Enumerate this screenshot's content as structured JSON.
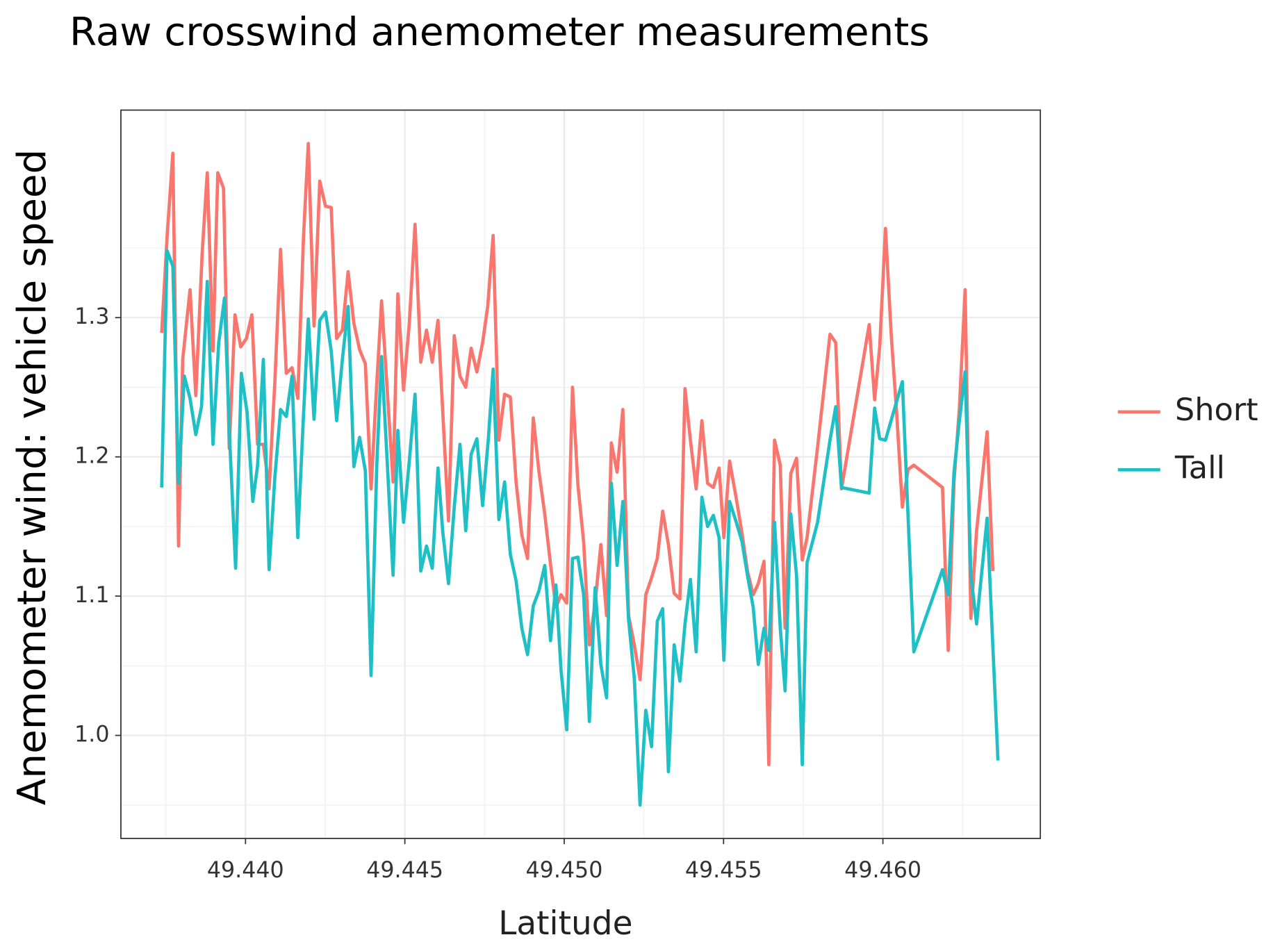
{
  "chart_data": {
    "type": "line",
    "title": "Raw crosswind anemometer measurements",
    "x_label": "Latitude",
    "y_label": "Anemometer wind: vehicle speed",
    "xlim": [
      49.43609,
      49.46494
    ],
    "ylim": [
      0.926,
      1.449
    ],
    "xticks": [
      {
        "value": 49.44,
        "label": "49.440"
      },
      {
        "value": 49.445,
        "label": "49.445"
      },
      {
        "value": 49.45,
        "label": "49.450"
      },
      {
        "value": 49.455,
        "label": "49.455"
      },
      {
        "value": 49.46,
        "label": "49.460"
      }
    ],
    "yticks": [
      {
        "value": 1,
        "label": "1.0"
      },
      1.1,
      1.2,
      1.3
    ],
    "grid": true,
    "legend": "right",
    "series": [
      {
        "name": "Short",
        "color": "#F8766D",
        "x": [
          49.43737,
          49.43754,
          49.43772,
          49.4379,
          49.43803,
          49.43826,
          49.43844,
          49.43864,
          49.4388,
          49.43898,
          49.43913,
          49.43931,
          49.43949,
          49.43967,
          49.43985,
          49.44003,
          49.4402,
          49.44038,
          49.44056,
          49.44074,
          49.44092,
          49.4411,
          49.44128,
          49.44146,
          49.44164,
          49.44182,
          49.44197,
          49.44215,
          49.44233,
          49.44251,
          49.44269,
          49.44286,
          49.44304,
          49.44322,
          49.4434,
          49.44358,
          49.44376,
          49.44394,
          49.44412,
          49.44427,
          49.44445,
          49.44463,
          49.44478,
          49.44496,
          49.44514,
          49.44532,
          49.4455,
          49.44568,
          49.44586,
          49.44604,
          49.44619,
          49.44637,
          49.44655,
          49.44673,
          49.44691,
          49.44708,
          49.44726,
          49.44744,
          49.4476,
          49.44777,
          49.44795,
          49.44813,
          49.44831,
          49.44849,
          49.44867,
          49.44885,
          49.44903,
          49.44921,
          49.44939,
          49.44957,
          49.44974,
          49.4499,
          49.45008,
          49.45026,
          49.45043,
          49.45061,
          49.45079,
          49.45097,
          49.45115,
          49.45133,
          49.45148,
          49.45166,
          49.45184,
          49.45202,
          49.4522,
          49.45238,
          49.45256,
          49.45274,
          49.45292,
          49.45309,
          49.45327,
          49.45345,
          49.45363,
          49.45379,
          49.45396,
          49.45414,
          49.45432,
          49.4545,
          49.45468,
          49.45486,
          49.45501,
          49.45519,
          49.4554,
          49.45558,
          49.45575,
          49.45593,
          49.45609,
          49.45627,
          49.45642,
          49.4566,
          49.45678,
          49.45693,
          49.45711,
          49.45729,
          49.45747,
          49.45762,
          49.45795,
          49.45834,
          49.45852,
          49.4587,
          49.45957,
          49.45974,
          49.4599,
          49.46008,
          49.46026,
          49.46043,
          49.46061,
          49.46079,
          49.46097,
          49.46187,
          49.46205,
          49.46223,
          49.4624,
          49.46258,
          49.46276,
          49.46294,
          49.46327,
          49.46345
        ],
        "values": [
          1.289,
          1.358,
          1.418,
          1.136,
          1.27,
          1.32,
          1.244,
          1.346,
          1.404,
          1.276,
          1.404,
          1.393,
          1.206,
          1.302,
          1.279,
          1.285,
          1.302,
          1.209,
          1.209,
          1.177,
          1.253,
          1.349,
          1.26,
          1.264,
          1.242,
          1.358,
          1.425,
          1.294,
          1.398,
          1.38,
          1.379,
          1.285,
          1.291,
          1.333,
          1.296,
          1.277,
          1.267,
          1.177,
          1.253,
          1.312,
          1.247,
          1.182,
          1.317,
          1.248,
          1.296,
          1.367,
          1.268,
          1.291,
          1.268,
          1.298,
          1.232,
          1.154,
          1.287,
          1.258,
          1.25,
          1.278,
          1.261,
          1.282,
          1.308,
          1.359,
          1.212,
          1.245,
          1.243,
          1.182,
          1.144,
          1.127,
          1.228,
          1.189,
          1.159,
          1.123,
          1.092,
          1.101,
          1.095,
          1.25,
          1.18,
          1.139,
          1.065,
          1.095,
          1.137,
          1.086,
          1.21,
          1.189,
          1.234,
          1.086,
          1.065,
          1.04,
          1.101,
          1.113,
          1.127,
          1.161,
          1.137,
          1.102,
          1.098,
          1.249,
          1.212,
          1.177,
          1.226,
          1.181,
          1.178,
          1.192,
          1.142,
          1.197,
          1.17,
          1.145,
          1.118,
          1.101,
          1.109,
          1.125,
          0.979,
          1.212,
          1.194,
          1.077,
          1.188,
          1.199,
          1.126,
          1.142,
          1.207,
          1.288,
          1.282,
          1.177,
          1.295,
          1.241,
          1.279,
          1.364,
          1.288,
          1.232,
          1.164,
          1.191,
          1.194,
          1.178,
          1.061,
          1.182,
          1.235,
          1.32,
          1.084,
          1.147,
          1.218,
          1.118
        ]
      },
      {
        "name": "Tall",
        "color": "#1FBFC6",
        "x": [
          49.43737,
          49.43754,
          49.43772,
          49.4379,
          49.43808,
          49.43826,
          49.43844,
          49.43862,
          49.4388,
          49.43898,
          49.43916,
          49.43934,
          49.43951,
          49.43969,
          49.43987,
          49.44005,
          49.44023,
          49.44038,
          49.44056,
          49.44074,
          49.44092,
          49.4411,
          49.44128,
          49.44146,
          49.44164,
          49.44182,
          49.44197,
          49.44215,
          49.44233,
          49.44251,
          49.44269,
          49.44286,
          49.44304,
          49.44322,
          49.4434,
          49.44358,
          49.44376,
          49.44394,
          49.44412,
          49.44427,
          49.44445,
          49.44463,
          49.44478,
          49.44496,
          49.44514,
          49.44532,
          49.4455,
          49.44568,
          49.44586,
          49.44604,
          49.44619,
          49.44637,
          49.44655,
          49.44673,
          49.44691,
          49.44708,
          49.44726,
          49.44744,
          49.44762,
          49.44777,
          49.44795,
          49.44813,
          49.44831,
          49.44849,
          49.44867,
          49.44885,
          49.44903,
          49.44921,
          49.44939,
          49.44957,
          49.44974,
          49.4499,
          49.45008,
          49.45026,
          49.45043,
          49.45061,
          49.45079,
          49.45097,
          49.45115,
          49.45133,
          49.45148,
          49.45166,
          49.45184,
          49.45202,
          49.4522,
          49.45238,
          49.45256,
          49.45274,
          49.45292,
          49.45309,
          49.45327,
          49.45345,
          49.45363,
          49.45379,
          49.45396,
          49.45414,
          49.45432,
          49.4545,
          49.45468,
          49.45486,
          49.45501,
          49.45519,
          49.4554,
          49.45558,
          49.45575,
          49.45593,
          49.45609,
          49.45627,
          49.45642,
          49.4566,
          49.45678,
          49.45693,
          49.45711,
          49.45729,
          49.45747,
          49.45762,
          49.45795,
          49.45834,
          49.45852,
          49.4587,
          49.45957,
          49.45974,
          49.4599,
          49.46008,
          49.46061,
          49.46097,
          49.46187,
          49.46205,
          49.46223,
          49.4624,
          49.46258,
          49.46276,
          49.46294,
          49.46327,
          49.46361
        ],
        "values": [
          1.178,
          1.348,
          1.337,
          1.181,
          1.258,
          1.242,
          1.216,
          1.236,
          1.326,
          1.209,
          1.282,
          1.314,
          1.209,
          1.12,
          1.26,
          1.232,
          1.168,
          1.194,
          1.27,
          1.119,
          1.185,
          1.234,
          1.229,
          1.258,
          1.142,
          1.23,
          1.299,
          1.227,
          1.298,
          1.304,
          1.276,
          1.226,
          1.27,
          1.308,
          1.193,
          1.214,
          1.19,
          1.043,
          1.195,
          1.272,
          1.195,
          1.115,
          1.219,
          1.153,
          1.197,
          1.245,
          1.118,
          1.136,
          1.12,
          1.192,
          1.146,
          1.109,
          1.164,
          1.209,
          1.147,
          1.202,
          1.213,
          1.165,
          1.213,
          1.263,
          1.155,
          1.182,
          1.13,
          1.111,
          1.077,
          1.058,
          1.093,
          1.104,
          1.122,
          1.068,
          1.108,
          1.047,
          1.004,
          1.127,
          1.128,
          1.101,
          1.01,
          1.106,
          1.051,
          1.027,
          1.181,
          1.122,
          1.168,
          1.083,
          1.041,
          0.95,
          1.018,
          0.992,
          1.082,
          1.091,
          0.974,
          1.065,
          1.039,
          1.08,
          1.112,
          1.06,
          1.171,
          1.15,
          1.158,
          1.142,
          1.054,
          1.168,
          1.153,
          1.139,
          1.115,
          1.092,
          1.051,
          1.077,
          1.061,
          1.153,
          1.077,
          1.032,
          1.159,
          1.115,
          0.979,
          1.124,
          1.153,
          1.212,
          1.236,
          1.178,
          1.174,
          1.235,
          1.213,
          1.212,
          1.254,
          1.06,
          1.119,
          1.101,
          1.189,
          1.226,
          1.261,
          1.115,
          1.08,
          1.156,
          0.982
        ]
      }
    ]
  }
}
